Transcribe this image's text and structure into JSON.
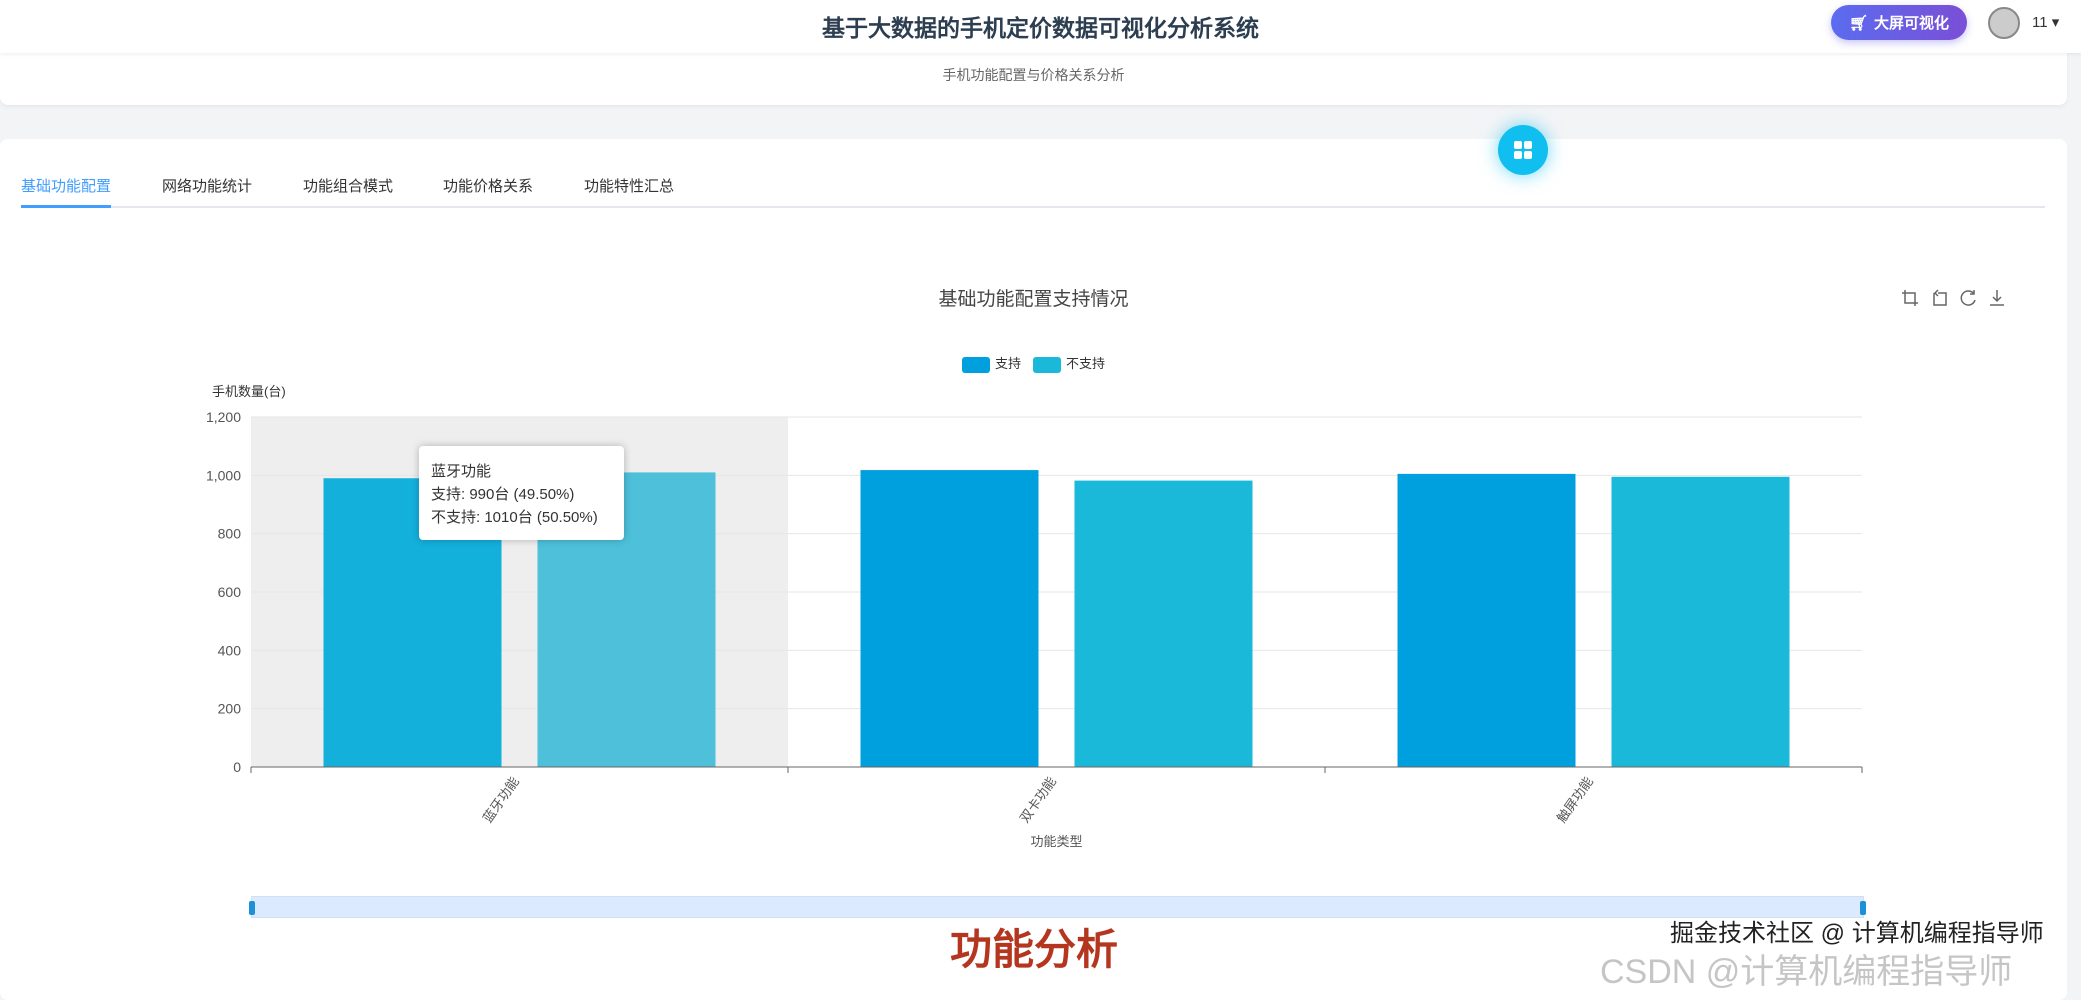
{
  "header": {
    "title": "基于大数据的手机定价数据可视化分析系统",
    "bigscreen_label": "大屏可视化",
    "user": "11 ▾"
  },
  "subtitle": "手机功能配置与价格关系分析",
  "tabs": [
    {
      "label": "基础功能配置",
      "active": true
    },
    {
      "label": "网络功能统计"
    },
    {
      "label": "功能组合模式"
    },
    {
      "label": "功能价格关系"
    },
    {
      "label": "功能特性汇总"
    }
  ],
  "toolbox": [
    "zoom-icon",
    "zoom-reset-icon",
    "restore-icon",
    "download-icon"
  ],
  "chart_data": {
    "type": "bar",
    "title": "基础功能配置支持情况",
    "categories": [
      "蓝牙功能",
      "双卡功能",
      "触屏功能"
    ],
    "series": [
      {
        "name": "支持",
        "values": [
          990,
          1018,
          1005
        ],
        "color": "#009fdd"
      },
      {
        "name": "不支持",
        "values": [
          1010,
          982,
          995
        ],
        "color": "#1ab9da"
      }
    ],
    "ylabel": "手机数量(台)",
    "xlabel": "功能类型",
    "ylim": [
      0,
      1200
    ],
    "yticks": [
      "0",
      "200",
      "400",
      "600",
      "800",
      "1,000",
      "1,200"
    ],
    "legend": "top-center",
    "grid": true,
    "highlighted_category": "蓝牙功能"
  },
  "tooltip": {
    "title": "蓝牙功能",
    "line1": "支持: 990台 (49.50%)",
    "line2": "不支持: 1010台 (50.50%)"
  },
  "overlay_caption": "功能分析",
  "watermark": {
    "faded": "CSDN @计算机编程指导师",
    "front": "掘金技术社区 @ 计算机编程指导师"
  }
}
